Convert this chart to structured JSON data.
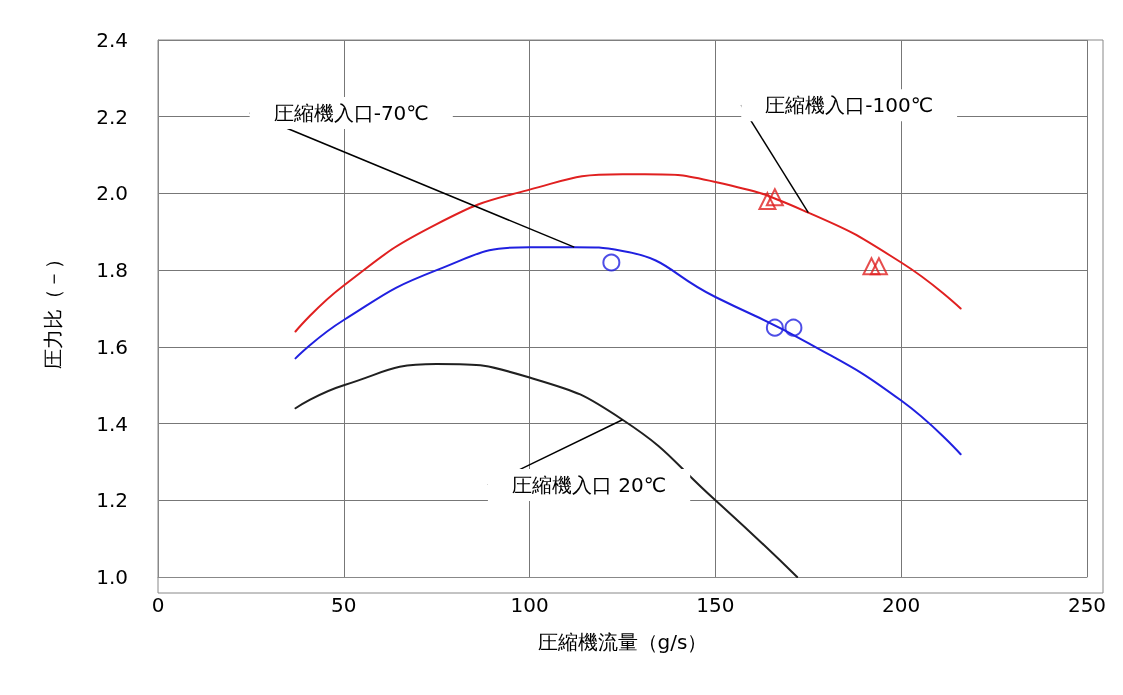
{
  "chart_data": {
    "type": "line",
    "xlabel": "圧縮機流量（g/s）",
    "ylabel": "圧力比（－）",
    "xlim": [
      0,
      250
    ],
    "xticks": [
      0,
      50,
      100,
      150,
      200,
      250
    ],
    "ylim": [
      1.0,
      2.4
    ],
    "yticks": [
      {
        "value": 1.0,
        "label": "1.0"
      },
      1.2,
      1.4,
      1.6,
      1.8,
      {
        "value": 2.0,
        "label": "2.0"
      },
      2.2,
      2.4
    ],
    "grid": true,
    "legend": false,
    "marker": "none",
    "line_style": "solid",
    "series": [
      {
        "name": "圧縮機入口-100℃",
        "color": "#e02020",
        "x": [
          37,
          50,
          75,
          100,
          125,
          131,
          150,
          175,
          200,
          216
        ],
        "values": [
          1.64,
          1.76,
          1.92,
          2.01,
          2.05,
          2.05,
          2.03,
          1.95,
          1.82,
          1.7
        ]
      },
      {
        "name": "圧縮機入口-70℃",
        "color": "#2020e0",
        "x": [
          37,
          50,
          75,
          100,
          112,
          125,
          150,
          175,
          200,
          216
        ],
        "values": [
          1.57,
          1.67,
          1.8,
          1.86,
          1.86,
          1.85,
          1.73,
          1.61,
          1.46,
          1.32
        ]
      },
      {
        "name": "圧縮機入口 20℃",
        "color": "#202020",
        "x": [
          37,
          50,
          75,
          100,
          125,
          150,
          172
        ],
        "values": [
          1.44,
          1.5,
          1.555,
          1.52,
          1.41,
          1.2,
          1.0
        ]
      },
      {
        "type": "scatter",
        "marker": "triangle",
        "color": "#e02020",
        "x": [
          164,
          166,
          192,
          194
        ],
        "values": [
          1.98,
          1.99,
          1.81,
          1.81
        ]
      },
      {
        "type": "scatter",
        "marker": "circle",
        "color": "#2020e0",
        "x": [
          122,
          166,
          171
        ],
        "values": [
          1.82,
          1.65,
          1.65
        ]
      }
    ]
  }
}
